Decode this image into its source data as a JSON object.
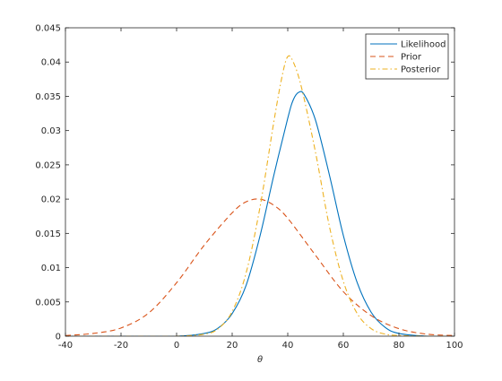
{
  "chart_data": {
    "type": "line",
    "xlabel": "θ",
    "ylabel": "",
    "title": "",
    "xlim": [
      -40,
      100
    ],
    "ylim": [
      0,
      0.045
    ],
    "xticks": [
      -40,
      -20,
      0,
      20,
      40,
      60,
      80,
      100
    ],
    "xtick_labels": [
      "-40",
      "-20",
      "0",
      "20",
      "40",
      "60",
      "80",
      "100"
    ],
    "yticks": [
      0,
      0.005,
      0.01,
      0.015,
      0.02,
      0.025,
      0.03,
      0.035,
      0.04,
      0.045
    ],
    "ytick_labels": [
      "0",
      "0.005",
      "0.01",
      "0.015",
      "0.02",
      "0.025",
      "0.03",
      "0.035",
      "0.04",
      "0.045"
    ],
    "grid": false,
    "legend_position": "top-right",
    "series": [
      {
        "name": "Likelihood",
        "color": "#0072bd",
        "dash": "solid",
        "x": [
          -40,
          -20,
          0,
          10,
          15,
          20,
          25,
          30,
          35,
          40,
          42,
          44,
          46,
          50,
          55,
          60,
          65,
          70,
          75,
          80,
          90,
          100
        ],
        "y": [
          0,
          0,
          0,
          0.0004,
          0.0012,
          0.0033,
          0.0074,
          0.0146,
          0.0235,
          0.0318,
          0.0345,
          0.0356,
          0.0352,
          0.0315,
          0.0235,
          0.0147,
          0.0078,
          0.0035,
          0.0013,
          0.0004,
          0,
          0
        ]
      },
      {
        "name": "Prior",
        "color": "#d95319",
        "dash": "dashed",
        "x": [
          -40,
          -30,
          -20,
          -10,
          0,
          10,
          20,
          25,
          30,
          35,
          40,
          50,
          60,
          70,
          80,
          90,
          100
        ],
        "y": [
          0.0001,
          0.0004,
          0.0012,
          0.0034,
          0.0078,
          0.0133,
          0.018,
          0.0196,
          0.02,
          0.0191,
          0.0172,
          0.0118,
          0.0065,
          0.003,
          0.0011,
          0.0003,
          0.0001
        ]
      },
      {
        "name": "Posterior",
        "color": "#edb120",
        "dash": "dashdot",
        "x": [
          -40,
          -20,
          0,
          10,
          15,
          20,
          25,
          30,
          35,
          38,
          40,
          42,
          45,
          50,
          55,
          60,
          65,
          70,
          75,
          80,
          90,
          100
        ],
        "y": [
          0,
          0,
          0,
          0.0003,
          0.0011,
          0.0036,
          0.0092,
          0.0188,
          0.0313,
          0.038,
          0.0408,
          0.04,
          0.0362,
          0.0268,
          0.016,
          0.008,
          0.0033,
          0.0011,
          0.0003,
          0.0001,
          0,
          0
        ]
      }
    ]
  }
}
